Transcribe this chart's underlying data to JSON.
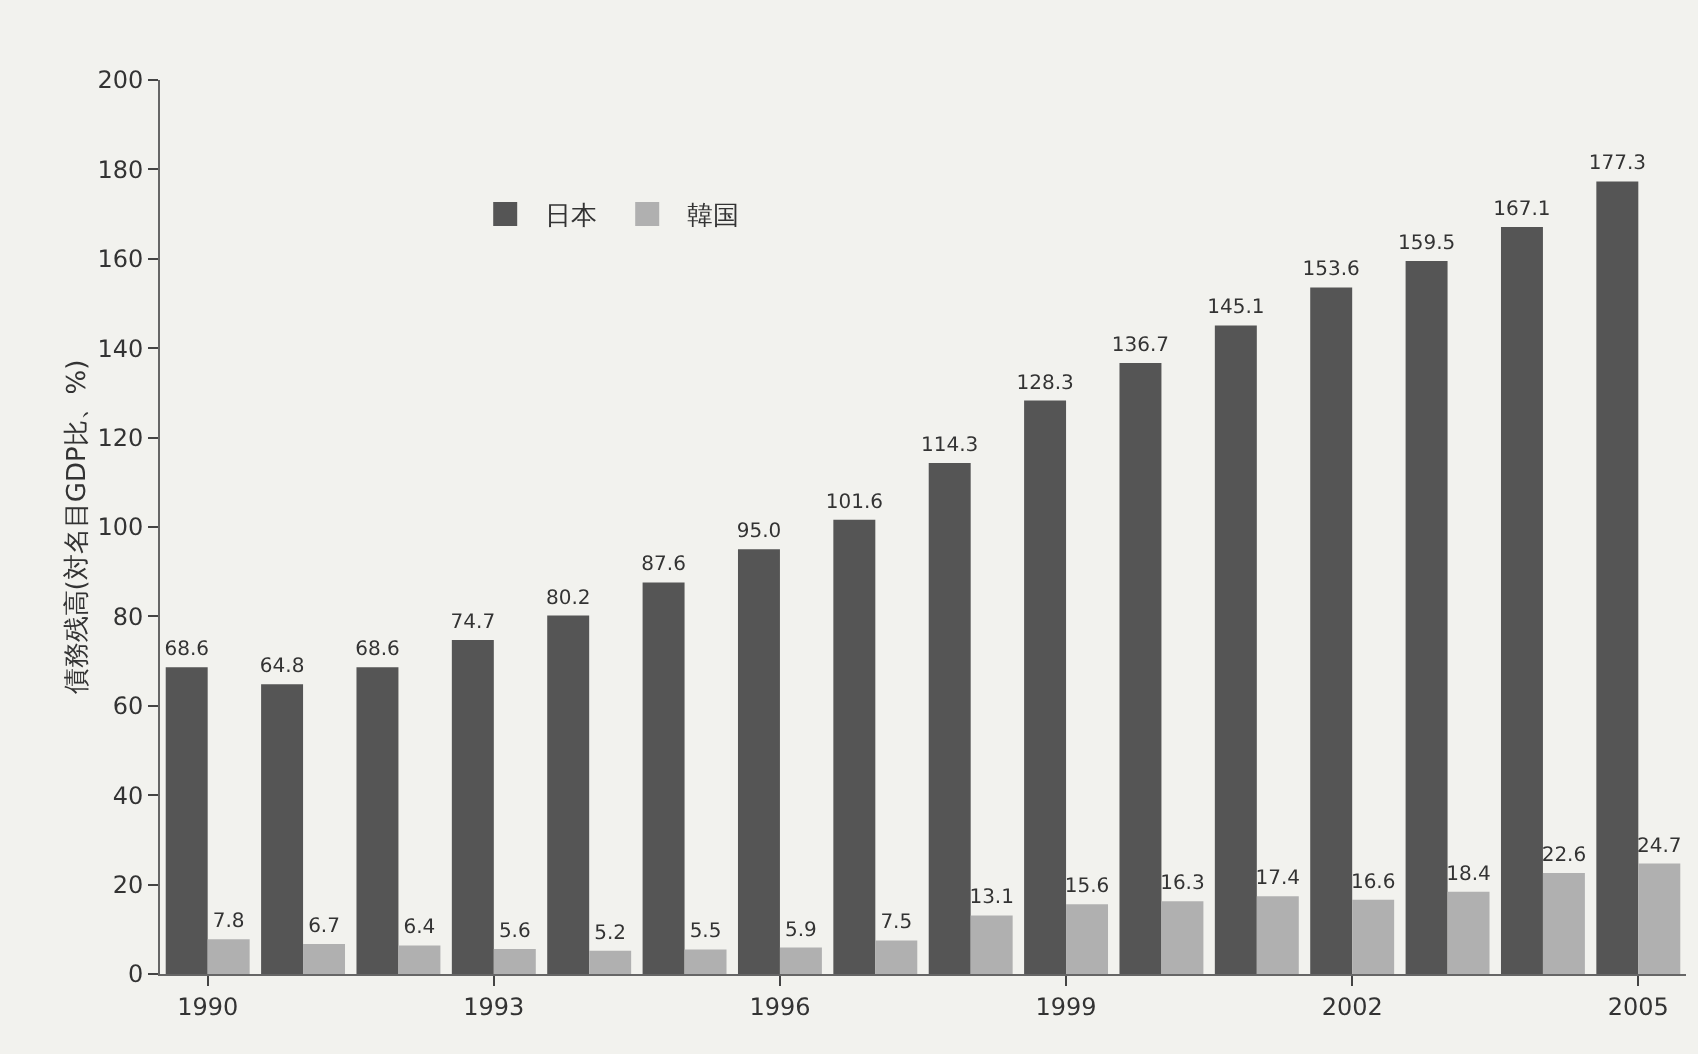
{
  "chart_data": {
    "type": "bar",
    "ylabel": "債務残高(対名目GDP比、%)",
    "categories": [
      "1990",
      null,
      null,
      "1993",
      null,
      null,
      "1996",
      null,
      null,
      "1999",
      null,
      null,
      "2002",
      null,
      null,
      "2005"
    ],
    "series": [
      {
        "name": "日本",
        "color": "#555555",
        "values": [
          68.6,
          64.8,
          68.6,
          74.7,
          80.2,
          87.6,
          95.0,
          101.6,
          114.3,
          128.3,
          136.7,
          145.1,
          153.6,
          159.5,
          167.1,
          177.3
        ],
        "value_labels": [
          "68.6",
          "64.8",
          "68.6",
          "74.7",
          "80.2",
          "87.6",
          "95.0",
          "101.6",
          "114.3",
          "128.3",
          "136.7",
          "145.1",
          "153.6",
          "159.5",
          "167.1",
          "177.3"
        ]
      },
      {
        "name": "韓国",
        "color": "#b0b0b0",
        "values": [
          7.8,
          6.7,
          6.4,
          5.6,
          5.2,
          5.5,
          5.9,
          7.5,
          13.1,
          15.6,
          16.3,
          17.4,
          16.6,
          18.4,
          22.6,
          24.7
        ],
        "value_labels": [
          "7.8",
          "6.7",
          "6.4",
          "5.6",
          "5.2",
          "5.5",
          "5.9",
          "7.5",
          "13.1",
          "15.6",
          "16.3",
          "17.4",
          "16.6",
          "18.4",
          "22.6",
          "24.7"
        ]
      }
    ],
    "ylim": [
      0,
      200
    ],
    "yticks": [
      0,
      20,
      40,
      60,
      80,
      100,
      120,
      140,
      160,
      180,
      200
    ],
    "grid": false,
    "legend": "top left"
  }
}
